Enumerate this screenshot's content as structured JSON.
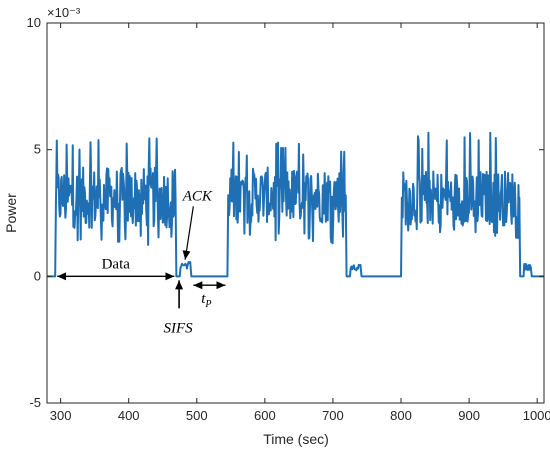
{
  "chart_data": {
    "type": "line",
    "title": "",
    "xlabel": "Time (sec)",
    "ylabel": "Power",
    "exponent_label": "×10⁻³",
    "xlim": [
      280,
      1010
    ],
    "ylim": [
      -5,
      10
    ],
    "xticks": [
      300,
      400,
      500,
      600,
      700,
      800,
      900,
      1000
    ],
    "yticks": [
      -5,
      0,
      5,
      10
    ],
    "xtick_labels": [
      "300",
      "400",
      "500",
      "600",
      "700",
      "800",
      "900",
      "1000"
    ],
    "ytick_labels": [
      "-5",
      "0",
      "5",
      "10"
    ],
    "grid": false,
    "series": [
      {
        "color": "#1f6fb4",
        "segments": [
          {
            "kind": "idle",
            "x0": 280,
            "x1": 292,
            "level": 0.0
          },
          {
            "kind": "burst",
            "x0": 292,
            "x1": 470,
            "mean": 3.1,
            "amp": 1.2,
            "spike_max": 5.6,
            "spike_min": 1.2
          },
          {
            "kind": "idle",
            "x0": 470,
            "x1": 475,
            "level": 0.0
          },
          {
            "kind": "ack",
            "x0": 475,
            "x1": 492,
            "mean": 0.45,
            "amp": 0.15
          },
          {
            "kind": "idle",
            "x0": 492,
            "x1": 545,
            "level": 0.0
          },
          {
            "kind": "burst",
            "x0": 545,
            "x1": 720,
            "mean": 3.2,
            "amp": 1.1,
            "spike_max": 5.3,
            "spike_min": 1.3
          },
          {
            "kind": "idle",
            "x0": 720,
            "x1": 725,
            "level": 0.0
          },
          {
            "kind": "ack",
            "x0": 725,
            "x1": 742,
            "mean": 0.35,
            "amp": 0.12
          },
          {
            "kind": "idle",
            "x0": 742,
            "x1": 800,
            "level": 0.0
          },
          {
            "kind": "burst",
            "x0": 800,
            "x1": 975,
            "mean": 3.1,
            "amp": 1.1,
            "spike_max": 5.7,
            "spike_min": 1.5
          },
          {
            "kind": "idle",
            "x0": 975,
            "x1": 980,
            "level": 0.0
          },
          {
            "kind": "ack",
            "x0": 980,
            "x1": 992,
            "mean": 0.4,
            "amp": 0.15
          },
          {
            "kind": "idle",
            "x0": 992,
            "x1": 1010,
            "level": 0.0
          }
        ]
      }
    ],
    "annotations": {
      "data_label": "Data",
      "data_span": [
        292,
        470
      ],
      "data_y": 0.0,
      "ack_label": "ACK",
      "ack_target": [
        480,
        0.5
      ],
      "ack_text_at": [
        492,
        3.0
      ],
      "sifs_label": "SIFS",
      "sifs_x": 474,
      "tp_label_main": "t",
      "tp_label_sub": "P",
      "tp_span": [
        492,
        545
      ],
      "tp_y": -0.35
    }
  }
}
